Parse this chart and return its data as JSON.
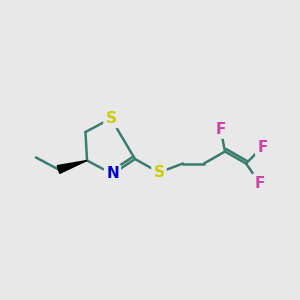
{
  "background_color": "#e8e8e8",
  "bond_color": "#3a7d6e",
  "S_color": "#cccc00",
  "N_color": "#0000cc",
  "F_color": "#cc44aa",
  "bond_width": 1.8,
  "font_size": 11,
  "fig_size": [
    3.0,
    3.0
  ],
  "dpi": 100,
  "xlim": [
    0,
    10
  ],
  "ylim": [
    0,
    10
  ]
}
